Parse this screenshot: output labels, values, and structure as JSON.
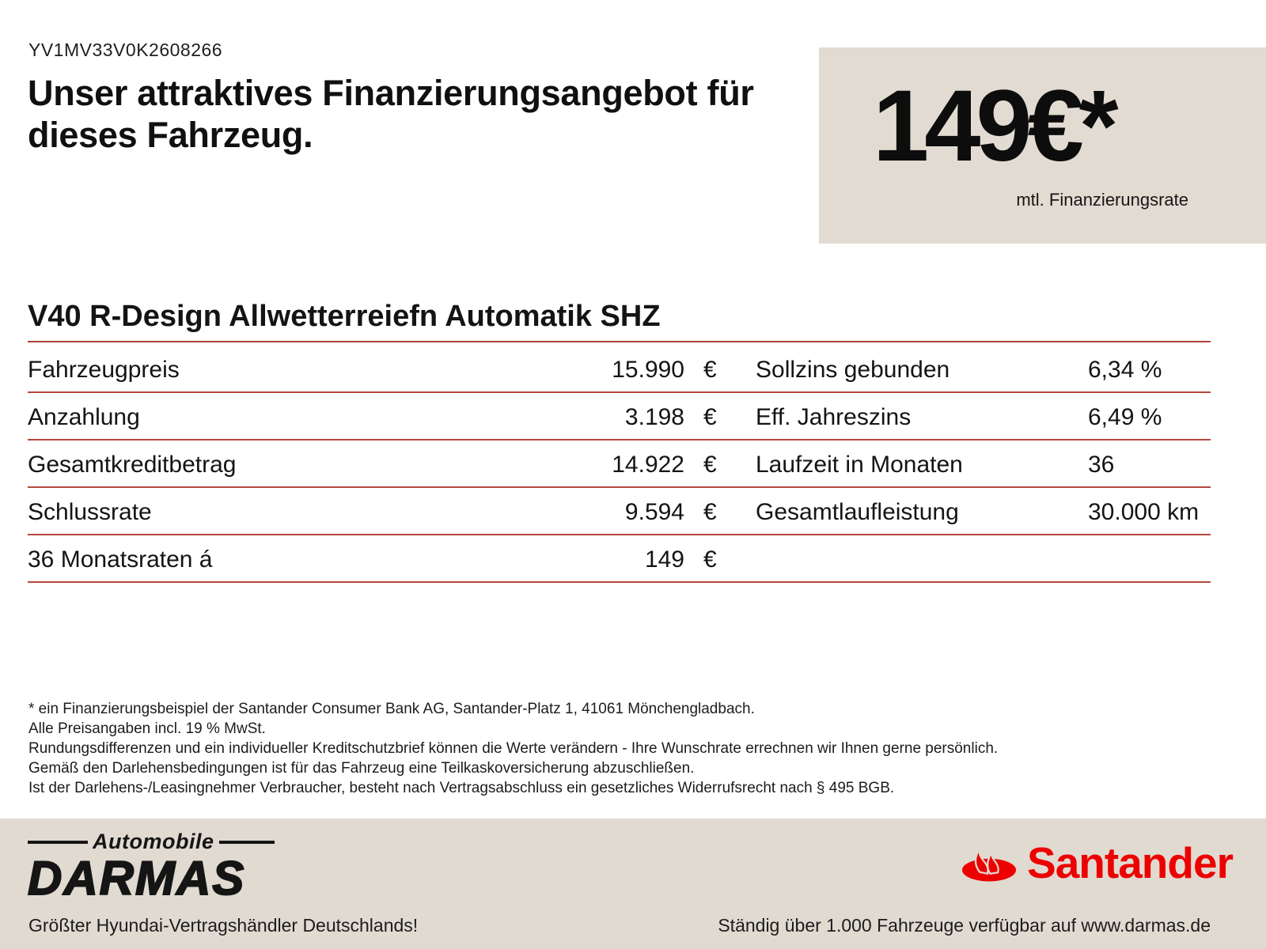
{
  "header": {
    "vin": "YV1MV33V0K2608266",
    "heading": "Unser attraktives Finanzierungsangebot für dieses Fahrzeug.",
    "rate_box": {
      "amount": "149€*",
      "caption": "mtl. Finanzierungsrate"
    }
  },
  "vehicle_title": "V40 R-Design Allwetterreiefn Automatik SHZ",
  "finance_table": {
    "rows": [
      {
        "label_left": "Fahrzeugpreis",
        "value_left": "15.990",
        "unit_left": "€",
        "label_right": "Sollzins gebunden",
        "value_right": "6,34 %"
      },
      {
        "label_left": "Anzahlung",
        "value_left": "3.198",
        "unit_left": "€",
        "label_right": "Eff. Jahreszins",
        "value_right": "6,49 %"
      },
      {
        "label_left": "Gesamtkreditbetrag",
        "value_left": "14.922",
        "unit_left": "€",
        "label_right": "Laufzeit in Monaten",
        "value_right": "36"
      },
      {
        "label_left": "Schlussrate",
        "value_left": "9.594",
        "unit_left": "€",
        "label_right": "Gesamtlaufleistung",
        "value_right": "30.000 km"
      },
      {
        "label_left": "36 Monatsraten á",
        "value_left": "149",
        "unit_left": "€",
        "label_right": "",
        "value_right": ""
      }
    ]
  },
  "disclaimer": {
    "lines": [
      "* ein Finanzierungsbeispiel der Santander Consumer Bank AG, Santander-Platz 1, 41061 Mönchengladbach.",
      "Alle Preisangaben incl. 19 % MwSt.",
      "Rundungsdifferenzen und ein individueller Kreditschutzbrief können die Werte verändern - Ihre Wunschrate errechnen wir Ihnen gerne persönlich.",
      "Gemäß den Darlehensbedingungen ist für das Fahrzeug eine Teilkaskoversicherung abzuschließen.",
      "Ist der Darlehens-/Leasingnehmer Verbraucher, besteht nach Vertragsabschluss ein gesetzliches Widerrufsrecht nach § 495 BGB."
    ]
  },
  "footer": {
    "dealer_logo": {
      "script": "Automobile",
      "wordmark": "DARMAS"
    },
    "bank_logo": {
      "wordmark": "Santander",
      "icon": "santander-flame-icon"
    },
    "left_note": "Größter Hyundai-Vertragshändler Deutschlands!",
    "right_note": "Ständig über 1.000 Fahrzeuge verfügbar auf www.darmas.de"
  },
  "colors": {
    "rule_red": "#b0423c",
    "santander_red": "#ec0000",
    "rate_box_beige": "#e2dbd2",
    "footer_beige": "#e0dad1",
    "text": "#151515"
  }
}
